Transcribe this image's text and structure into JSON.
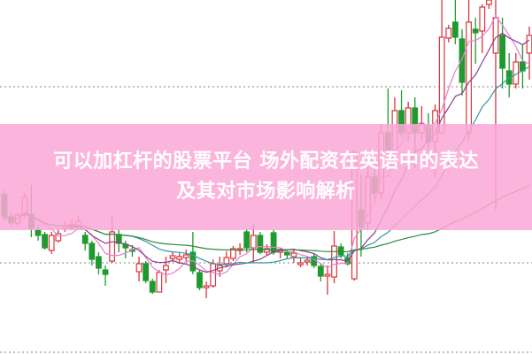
{
  "banner": {
    "title_line1": "可以加杠杆的股票平台 场外配资在英语中的表达",
    "title_line2": "及其对市场影响解析"
  },
  "chart_data": {
    "type": "candlestick",
    "title": "",
    "xlabel": "",
    "ylabel": "",
    "ylim": [
      0,
      400
    ],
    "grid": "horizontal dotted",
    "gridlines": [
      302,
      103,
      2
    ],
    "ohlc_order": [
      "open",
      "high",
      "low",
      "close"
    ],
    "candles": [
      [
        180,
        185,
        150,
        155
      ],
      [
        155,
        160,
        144,
        148
      ],
      [
        148,
        160,
        145,
        157
      ],
      [
        157,
        182,
        154,
        177
      ],
      [
        158,
        191,
        132,
        142
      ],
      [
        140,
        145,
        128,
        134
      ],
      [
        135,
        138,
        118,
        120
      ],
      [
        117,
        138,
        113,
        134
      ],
      [
        128,
        142,
        126,
        136
      ],
      [
        142,
        150,
        138,
        145
      ],
      [
        143,
        152,
        140,
        146
      ],
      [
        142,
        156,
        140,
        150
      ],
      [
        134,
        138,
        117,
        125
      ],
      [
        125,
        128,
        100,
        107
      ],
      [
        110,
        115,
        90,
        97
      ],
      [
        95,
        100,
        77,
        90
      ],
      [
        105,
        157,
        103,
        138
      ],
      [
        135,
        140,
        115,
        125
      ],
      [
        124,
        128,
        108,
        120
      ],
      [
        118,
        123,
        110,
        116
      ],
      [
        93,
        110,
        82,
        102
      ],
      [
        102,
        105,
        80,
        83
      ],
      [
        82,
        85,
        68,
        70
      ],
      [
        70,
        95,
        70,
        92
      ],
      [
        95,
        110,
        80,
        100
      ],
      [
        108,
        115,
        104,
        111
      ],
      [
        107,
        114,
        102,
        110
      ],
      [
        109,
        118,
        104,
        112
      ],
      [
        115,
        138,
        90,
        94
      ],
      [
        92,
        95,
        72,
        75
      ],
      [
        75,
        82,
        63,
        77
      ],
      [
        77,
        107,
        75,
        102
      ],
      [
        94,
        110,
        87,
        100
      ],
      [
        102,
        116,
        98,
        109
      ],
      [
        108,
        122,
        105,
        119
      ],
      [
        117,
        125,
        112,
        119
      ],
      [
        138,
        142,
        115,
        120
      ],
      [
        120,
        147,
        104,
        134
      ],
      [
        134,
        138,
        113,
        115
      ],
      [
        115,
        124,
        111,
        119
      ],
      [
        137,
        140,
        112,
        115
      ],
      [
        115,
        120,
        108,
        117
      ],
      [
        115,
        118,
        108,
        112
      ],
      [
        110,
        119,
        103,
        114
      ],
      [
        101,
        108,
        98,
        103
      ],
      [
        104,
        110,
        100,
        106
      ],
      [
        110,
        114,
        97,
        100
      ],
      [
        99,
        102,
        82,
        88
      ],
      [
        88,
        100,
        67,
        90
      ],
      [
        87,
        139,
        80,
        122
      ],
      [
        121,
        125,
        108,
        112
      ],
      [
        109,
        114,
        100,
        102
      ],
      [
        85,
        230,
        83,
        228
      ],
      [
        163,
        203,
        110,
        143
      ],
      [
        148,
        215,
        140,
        200
      ],
      [
        200,
        210,
        175,
        182
      ],
      [
        182,
        260,
        175,
        250
      ],
      [
        250,
        300,
        220,
        230
      ],
      [
        230,
        290,
        225,
        275
      ],
      [
        275,
        298,
        245,
        250
      ],
      [
        250,
        285,
        240,
        278
      ],
      [
        278,
        290,
        210,
        250
      ],
      [
        250,
        280,
        240,
        260
      ],
      [
        258,
        272,
        230,
        240
      ],
      [
        240,
        282,
        200,
        275
      ],
      [
        250,
        400,
        248,
        358
      ],
      [
        357,
        372,
        352,
        368
      ],
      [
        375,
        400,
        350,
        358
      ],
      [
        356,
        367,
        292,
        307
      ],
      [
        250,
        400,
        240,
        375
      ],
      [
        367,
        380,
        328,
        363
      ],
      [
        365,
        395,
        340,
        392
      ],
      [
        395,
        400,
        390,
        400
      ],
      [
        340,
        400,
        163,
        380
      ],
      [
        360,
        380,
        300,
        323
      ],
      [
        320,
        340,
        290,
        305
      ],
      [
        305,
        340,
        300,
        330
      ],
      [
        330,
        350,
        300,
        320
      ],
      [
        340,
        370,
        310,
        360
      ]
    ],
    "moving_averages": [
      {
        "period": 5,
        "color": "#e67fd3"
      },
      {
        "period": 10,
        "color": "#8e3d86"
      },
      {
        "period": 20,
        "color": "#2b9aa3"
      },
      {
        "period": 60,
        "color": "#2f8a3a"
      }
    ],
    "colors": {
      "up": "#d9363e",
      "down": "#1f9a2e",
      "grid": "#9a9a9a"
    }
  }
}
